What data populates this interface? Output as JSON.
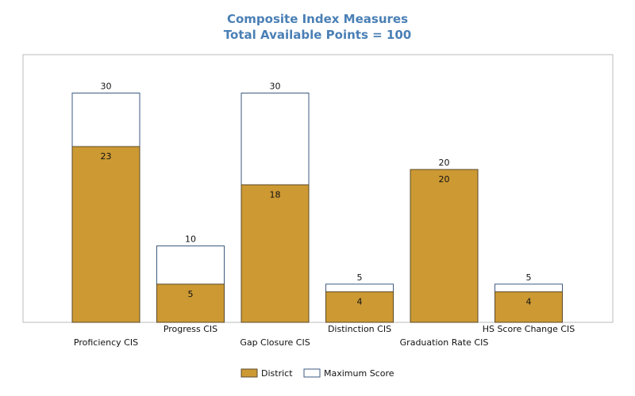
{
  "chart_data": {
    "type": "bar",
    "title": "Composite Index Measures",
    "subtitle": "Total Available Points = 100",
    "categories": [
      "Proficiency CIS",
      "Progress CIS",
      "Gap Closure CIS",
      "Distinction CIS",
      "Graduation Rate CIS",
      "HS Score Change CIS"
    ],
    "series": [
      {
        "name": "District",
        "values": [
          23,
          5,
          18,
          4,
          20,
          4
        ],
        "color": "#cc9933",
        "stroke": "#5a4a2a"
      },
      {
        "name": "Maximum Score",
        "values": [
          30,
          10,
          30,
          5,
          20,
          5
        ],
        "color": "#ffffff",
        "stroke": "#3d5a80"
      }
    ],
    "ylim": [
      0,
      36
    ],
    "grid": false,
    "legend": "bottom"
  }
}
